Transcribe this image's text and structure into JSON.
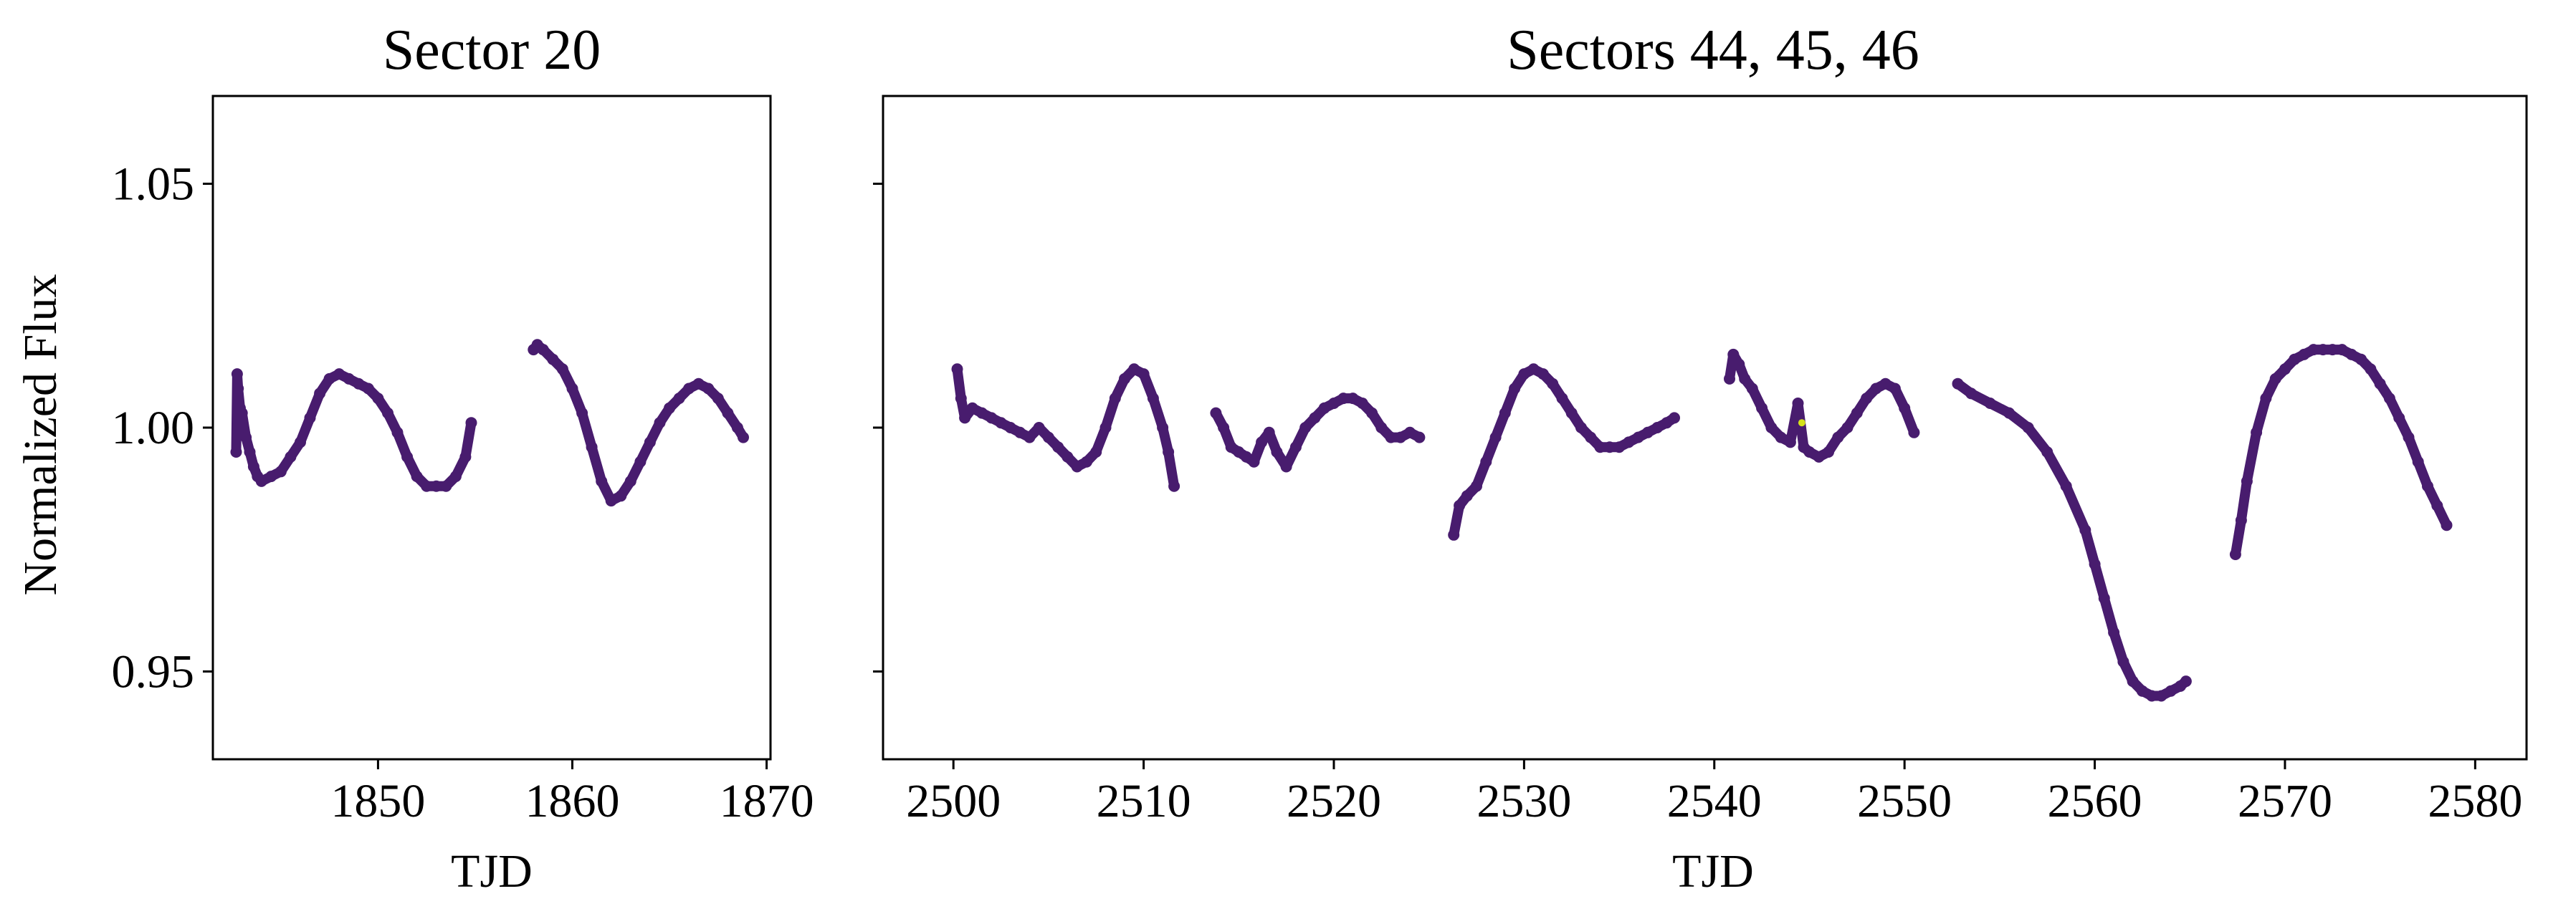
{
  "figure": {
    "ylabel": "Normalized Flux",
    "line_color": "#481c6e",
    "highlight_color": "#d5e21a"
  },
  "chart_data": [
    {
      "type": "scatter",
      "title": "Sector 20",
      "xlabel": "TJD",
      "ylabel": "Normalized Flux",
      "xlim": [
        1841.5,
        1870.2
      ],
      "ylim": [
        0.932,
        1.068
      ],
      "xticks": [
        1850,
        1860,
        1870
      ],
      "yticks": [
        0.95,
        1.0,
        1.05
      ],
      "ytick_labels": [
        "0.95",
        "1.00",
        "1.05"
      ],
      "segments": [
        {
          "x": [
            1842.7,
            1842.75,
            1842.8,
            1842.9,
            1843.0,
            1843.2,
            1843.4,
            1843.6,
            1843.8,
            1844.0,
            1844.5,
            1845.0,
            1845.5,
            1846.0,
            1846.5,
            1847.0,
            1847.5,
            1848.0,
            1848.5,
            1849.0,
            1849.5,
            1850.0,
            1850.5,
            1851.0,
            1851.5,
            1852.0,
            1852.5,
            1853.0,
            1853.5,
            1854.0,
            1854.5,
            1854.8
          ],
          "y": [
            0.995,
            1.011,
            1.008,
            1.004,
            1.003,
            0.998,
            0.995,
            0.992,
            0.99,
            0.989,
            0.99,
            0.991,
            0.994,
            0.997,
            1.002,
            1.007,
            1.01,
            1.011,
            1.01,
            1.009,
            1.008,
            1.006,
            1.003,
            0.999,
            0.994,
            0.99,
            0.988,
            0.988,
            0.988,
            0.99,
            0.994,
            1.001
          ]
        },
        {
          "x": [
            1858.0,
            1858.2,
            1858.5,
            1859.0,
            1859.5,
            1860.0,
            1860.5,
            1861.0,
            1861.5,
            1862.0,
            1862.5,
            1863.0,
            1863.5,
            1864.0,
            1864.5,
            1865.0,
            1865.5,
            1866.0,
            1866.5,
            1867.0,
            1867.5,
            1868.0,
            1868.5,
            1868.8
          ],
          "y": [
            1.016,
            1.017,
            1.016,
            1.014,
            1.012,
            1.008,
            1.003,
            0.996,
            0.989,
            0.985,
            0.986,
            0.989,
            0.993,
            0.997,
            1.001,
            1.004,
            1.006,
            1.008,
            1.009,
            1.008,
            1.006,
            1.003,
            1.0,
            0.998
          ]
        }
      ]
    },
    {
      "type": "scatter",
      "title": "Sectors 44, 45, 46",
      "xlabel": "TJD",
      "xlim": [
        2496.3,
        2582.7
      ],
      "ylim": [
        0.932,
        1.068
      ],
      "xticks": [
        2500,
        2510,
        2520,
        2530,
        2540,
        2550,
        2560,
        2570,
        2580
      ],
      "yticks": [
        0.95,
        1.0,
        1.05
      ],
      "segments": [
        {
          "x": [
            2500.2,
            2500.4,
            2500.6,
            2501.0,
            2501.5,
            2502.0,
            2502.5,
            2503.0,
            2503.5,
            2504.0,
            2504.5,
            2505.0,
            2505.5,
            2506.0,
            2506.5,
            2507.0,
            2507.5,
            2508.0,
            2508.5,
            2509.0,
            2509.5,
            2510.0,
            2510.5,
            2511.0,
            2511.3,
            2511.6
          ],
          "y": [
            1.012,
            1.006,
            1.002,
            1.004,
            1.003,
            1.002,
            1.001,
            1.0,
            0.999,
            0.998,
            1.0,
            0.998,
            0.996,
            0.994,
            0.992,
            0.993,
            0.995,
            1.0,
            1.006,
            1.01,
            1.012,
            1.011,
            1.006,
            1.0,
            0.995,
            0.988
          ]
        },
        {
          "x": [
            2513.8,
            2514.2,
            2514.6,
            2515.0,
            2515.4,
            2515.8,
            2516.2,
            2516.6,
            2517.0,
            2517.5,
            2518.0,
            2518.5,
            2519.0,
            2519.5,
            2520.0,
            2520.5,
            2521.0,
            2521.5,
            2522.0,
            2522.5,
            2523.0,
            2523.5,
            2524.0,
            2524.5
          ],
          "y": [
            1.003,
            1.0,
            0.996,
            0.995,
            0.994,
            0.993,
            0.997,
            0.999,
            0.995,
            0.992,
            0.996,
            1.0,
            1.002,
            1.004,
            1.005,
            1.006,
            1.006,
            1.005,
            1.003,
            1.0,
            0.998,
            0.998,
            0.999,
            0.998
          ]
        },
        {
          "x": [
            2526.3,
            2526.6,
            2527.0,
            2527.5,
            2528.0,
            2528.5,
            2529.0,
            2529.5,
            2530.0,
            2530.5,
            2531.0,
            2531.5,
            2532.0,
            2532.5,
            2533.0,
            2533.5,
            2534.0,
            2534.5,
            2535.0,
            2535.5,
            2536.0,
            2536.5,
            2537.0,
            2537.5,
            2537.9
          ],
          "y": [
            0.978,
            0.984,
            0.986,
            0.988,
            0.993,
            0.998,
            1.003,
            1.008,
            1.011,
            1.012,
            1.011,
            1.009,
            1.006,
            1.003,
            1.0,
            0.998,
            0.996,
            0.996,
            0.996,
            0.997,
            0.998,
            0.999,
            1.0,
            1.001,
            1.002
          ]
        },
        {
          "x": [
            2540.8,
            2541.0,
            2541.3,
            2541.6,
            2542.0,
            2542.5,
            2543.0,
            2543.5,
            2544.0,
            2544.4,
            2544.7,
            2545.0,
            2545.5,
            2546.0,
            2546.5,
            2547.0,
            2547.5,
            2548.0,
            2548.5,
            2549.0,
            2549.5,
            2550.0,
            2550.5
          ],
          "y": [
            1.01,
            1.015,
            1.013,
            1.01,
            1.008,
            1.004,
            1.0,
            0.998,
            0.997,
            1.005,
            0.996,
            0.995,
            0.994,
            0.995,
            0.998,
            1.0,
            1.003,
            1.006,
            1.008,
            1.009,
            1.008,
            1.004,
            0.999
          ]
        },
        {
          "x": [
            2552.8,
            2553.5,
            2554.5,
            2555.5,
            2556.5,
            2557.5,
            2558.5,
            2559.5,
            2560.0,
            2560.5,
            2561.0,
            2561.5,
            2562.0,
            2562.5,
            2563.0,
            2563.5,
            2564.0,
            2564.5,
            2564.8
          ],
          "y": [
            1.009,
            1.007,
            1.005,
            1.003,
            1.0,
            0.995,
            0.988,
            0.979,
            0.972,
            0.965,
            0.958,
            0.952,
            0.948,
            0.946,
            0.945,
            0.945,
            0.946,
            0.947,
            0.948
          ]
        },
        {
          "x": [
            2567.4,
            2567.7,
            2568.0,
            2568.5,
            2569.0,
            2569.5,
            2570.0,
            2570.5,
            2571.0,
            2571.5,
            2572.0,
            2572.5,
            2573.0,
            2573.5,
            2574.0,
            2574.5,
            2575.0,
            2575.5,
            2576.0,
            2576.5,
            2577.0,
            2577.5,
            2578.0,
            2578.5
          ],
          "y": [
            0.974,
            0.981,
            0.989,
            0.999,
            1.006,
            1.01,
            1.012,
            1.014,
            1.015,
            1.016,
            1.016,
            1.016,
            1.016,
            1.015,
            1.014,
            1.012,
            1.009,
            1.006,
            1.002,
            0.998,
            0.993,
            0.988,
            0.984,
            0.98
          ]
        }
      ],
      "highlight_points": [
        {
          "x": 2544.6,
          "y": 1.001
        }
      ]
    }
  ]
}
